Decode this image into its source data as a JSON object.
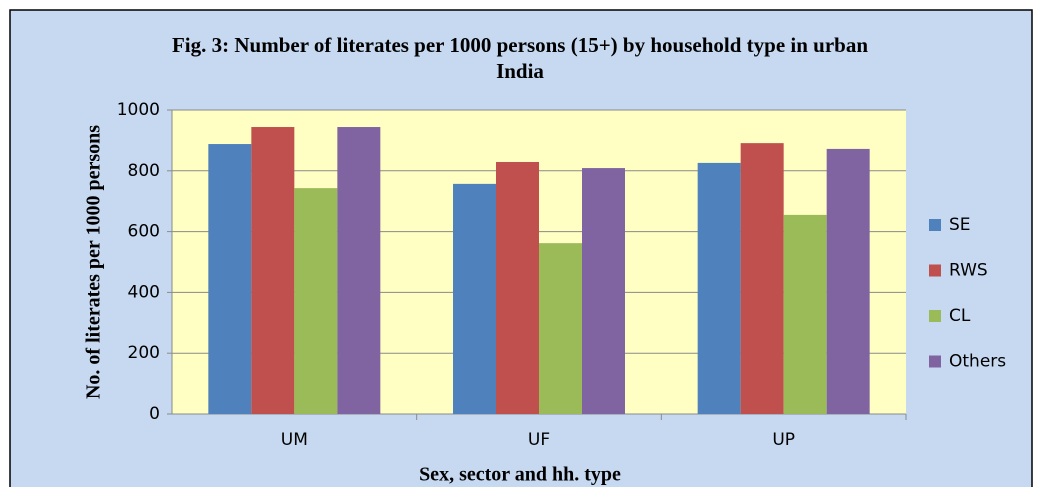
{
  "chart_data": {
    "type": "bar",
    "title": "Fig. 3: Number of literates per 1000 persons (15+) by household type in urban India",
    "x_label": "Sex, sector and hh. type",
    "y_label": "No. of literates per 1000 persons",
    "categories": [
      "UM",
      "UF",
      "UP"
    ],
    "series": [
      {
        "name": "SE",
        "color": "#4f81bd",
        "values": [
          888,
          757,
          826
        ]
      },
      {
        "name": "RWS",
        "color": "#c0504d",
        "values": [
          944,
          829,
          891
        ]
      },
      {
        "name": "CL",
        "color": "#9bbb59",
        "values": [
          743,
          562,
          655
        ]
      },
      {
        "name": "Others",
        "color": "#8064a2",
        "values": [
          944,
          809,
          872
        ]
      }
    ],
    "ylim": [
      0,
      1000
    ],
    "yticks": [
      0,
      200,
      400,
      600,
      800,
      1000
    ],
    "grid": true,
    "legend": "right"
  }
}
